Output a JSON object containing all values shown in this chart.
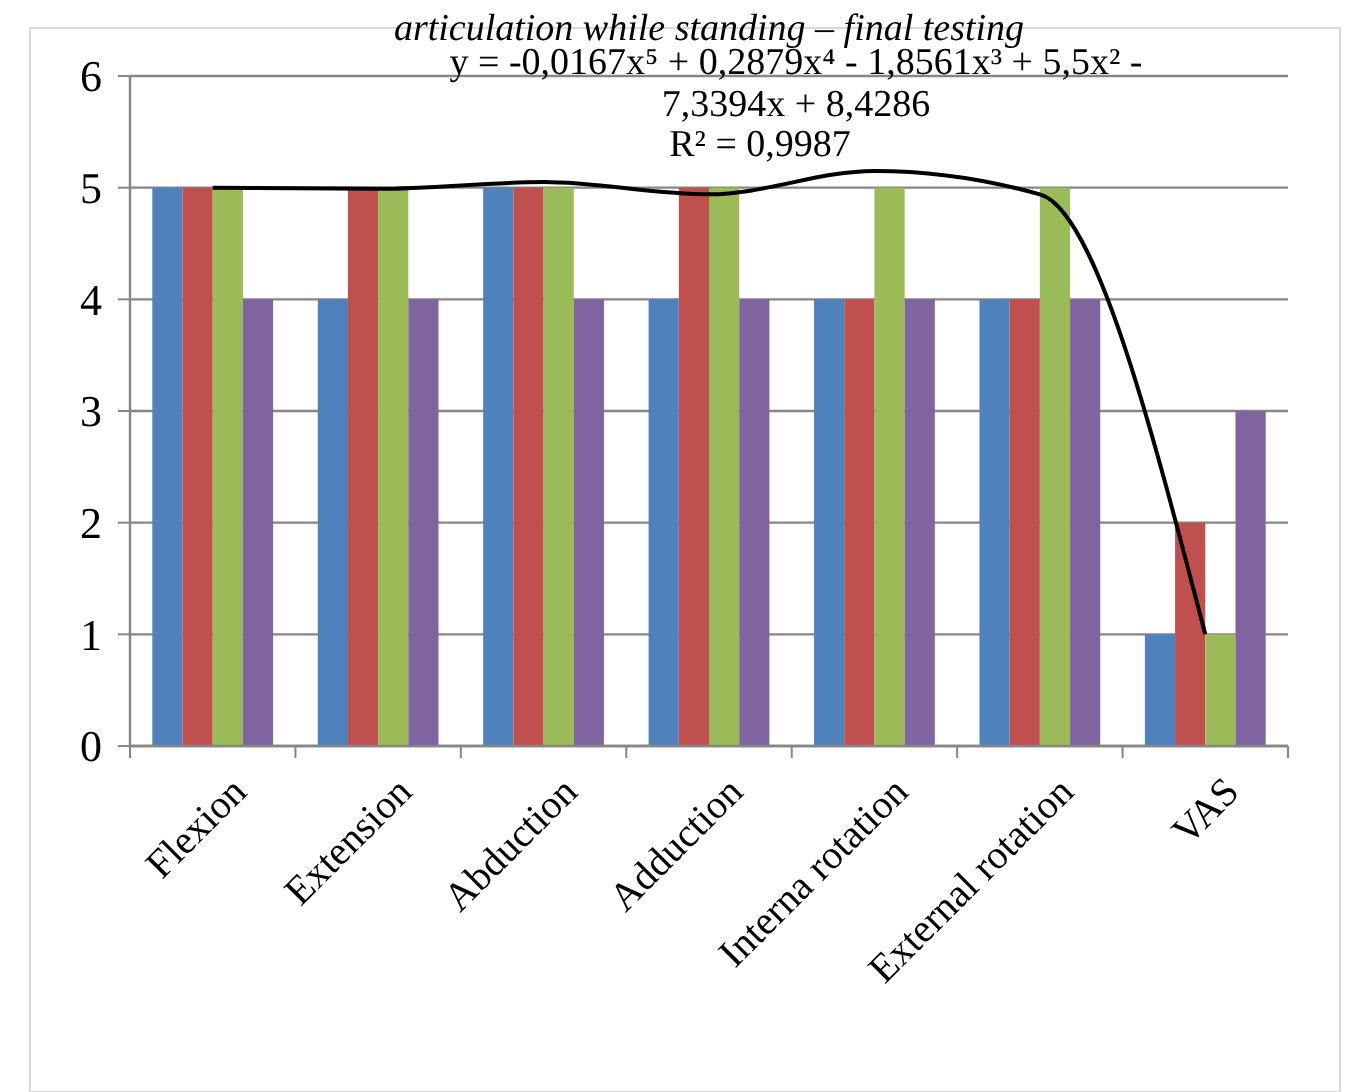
{
  "chart_data": {
    "type": "bar",
    "title": "articulation while standing – final testing",
    "categories": [
      "Flexion",
      "Extension",
      "Abduction",
      "Adduction",
      "Interna rotation",
      "External rotation",
      "VAS"
    ],
    "series": [
      {
        "color": "#4f81bd",
        "values": [
          5,
          4,
          5,
          4,
          4,
          4,
          1
        ]
      },
      {
        "color": "#c0504d",
        "values": [
          5,
          5,
          5,
          5,
          4,
          4,
          2
        ]
      },
      {
        "color": "#9bbb59",
        "values": [
          5,
          5,
          5,
          5,
          5,
          5,
          1
        ]
      },
      {
        "color": "#8064a2",
        "values": [
          4,
          4,
          4,
          4,
          4,
          4,
          3
        ]
      },
      {
        "type": "line",
        "color": "#000000",
        "values": [
          5.0,
          4.99,
          5.05,
          4.94,
          5.15,
          4.94,
          1.0
        ]
      }
    ],
    "ylim": [
      0,
      6
    ],
    "yticks": [
      0,
      1,
      2,
      3,
      4,
      5,
      6
    ],
    "grid": "y",
    "annotations": [
      "y = -0,0167x⁵ + 0,2879x⁴ - 1,8561x³ + 5,5x² - 7,3394x + 8,4286",
      "R² = 0,9987"
    ]
  }
}
